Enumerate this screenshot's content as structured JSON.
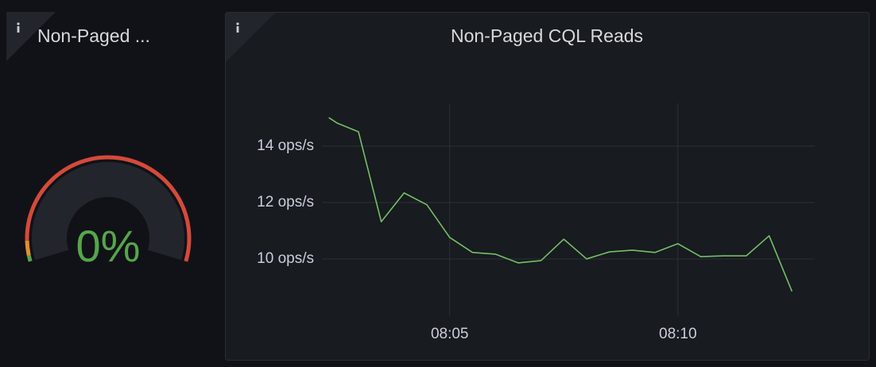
{
  "chart_data": [
    {
      "type": "gauge",
      "title": "Non-Paged ...",
      "values": [
        0
      ],
      "value_labels": [
        "0%"
      ],
      "color": "#56a64b",
      "ylim": [
        0,
        100
      ]
    },
    {
      "type": "line",
      "title": "Non-Paged CQL Reads",
      "x": [
        482.35,
        482.53,
        483,
        483.5,
        484,
        484.5,
        485,
        485.5,
        486,
        486.5,
        487,
        487.5,
        488,
        488.5,
        489,
        489.5,
        490,
        490.5,
        491,
        491.5,
        492,
        492.5
      ],
      "series": [
        {
          "color": "#73bf69",
          "values": [
            15.01,
            14.82,
            14.51,
            11.32,
            12.34,
            11.92,
            10.76,
            10.23,
            10.17,
            9.86,
            9.94,
            10.7,
            10.0,
            10.25,
            10.31,
            10.23,
            10.54,
            10.08,
            10.11,
            10.11,
            10.82,
            8.85
          ]
        }
      ],
      "xlim": [
        482.2,
        493
      ],
      "xticks": [
        {
          "value": 485,
          "label": "08:05"
        },
        {
          "value": 490,
          "label": "08:10"
        }
      ],
      "ylim": [
        7.97,
        15.52
      ],
      "yticks": [
        {
          "value": 10,
          "label": "10 ops/s"
        },
        {
          "value": 12,
          "label": "12 ops/s"
        },
        {
          "value": 14,
          "label": "14 ops/s"
        }
      ],
      "grid": true
    }
  ]
}
